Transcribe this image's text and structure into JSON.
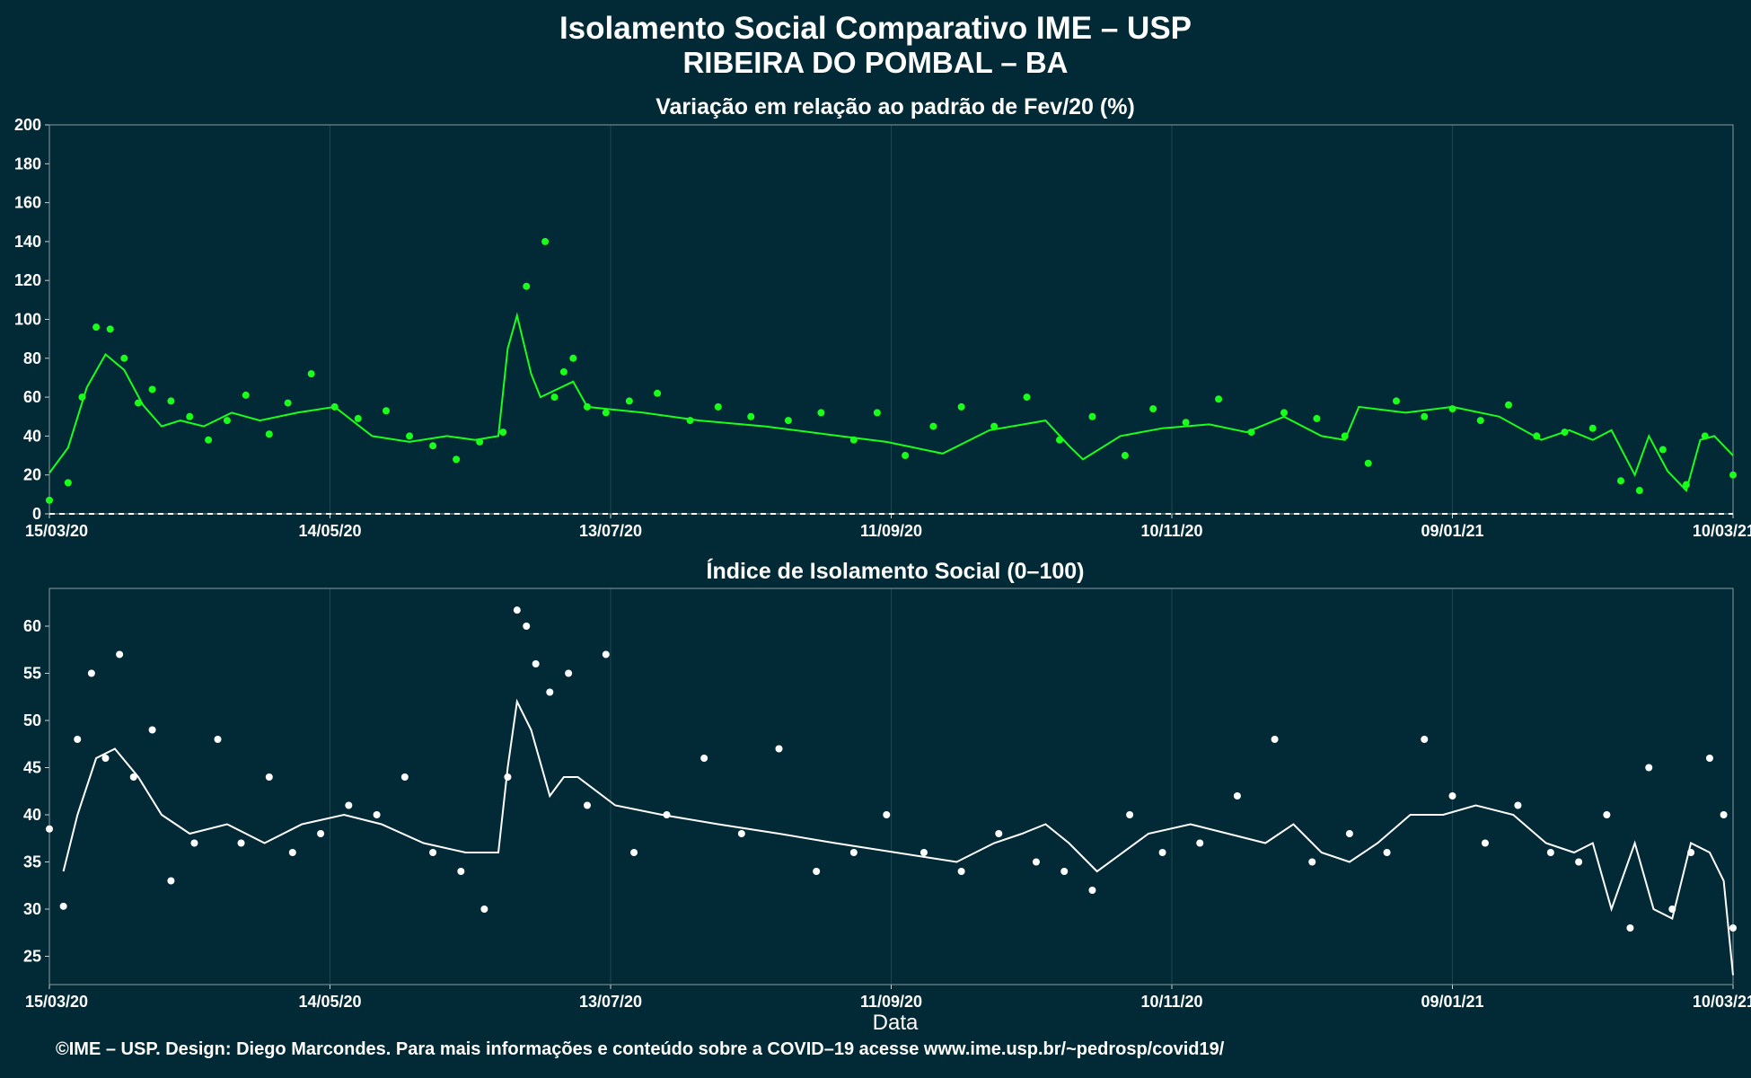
{
  "title": "Isolamento Social Comparativo IME – USP",
  "subtitle": "RIBEIRA DO POMBAL – BA",
  "footer": "©IME – USP. Design: Diego Marcondes. Para mais informações e conteúdo sobre a COVID–19 acesse www.ime.usp.br/~pedrosp/covid19/",
  "colors": {
    "background": "#022a36",
    "top_series": "#1aff1a",
    "bottom_series": "#ffffff"
  },
  "chart_data": [
    {
      "type": "scatter",
      "title": "Variação em relação ao padrão de Fev/20 (%)",
      "xlabel": "",
      "ylabel": "",
      "ylim": [
        0,
        200
      ],
      "xlim": [
        "2020-03-15",
        "2021-03-10"
      ],
      "yticks": [
        0,
        20,
        40,
        60,
        80,
        100,
        120,
        140,
        160,
        180,
        200
      ],
      "xticks": [
        "15/03/20",
        "14/05/20",
        "13/07/20",
        "11/09/20",
        "10/11/20",
        "09/01/21",
        "10/03/21"
      ],
      "reference_line": 0,
      "series": [
        {
          "kind": "points",
          "color": "#1aff1a",
          "x": [
            "2020-03-15",
            "2020-03-19",
            "2020-03-22",
            "2020-03-25",
            "2020-03-28",
            "2020-03-31",
            "2020-04-03",
            "2020-04-06",
            "2020-04-10",
            "2020-04-14",
            "2020-04-18",
            "2020-04-22",
            "2020-04-26",
            "2020-05-01",
            "2020-05-05",
            "2020-05-10",
            "2020-05-15",
            "2020-05-20",
            "2020-05-26",
            "2020-05-31",
            "2020-06-05",
            "2020-06-10",
            "2020-06-15",
            "2020-06-20",
            "2020-06-25",
            "2020-06-29",
            "2020-07-01",
            "2020-07-03",
            "2020-07-05",
            "2020-07-08",
            "2020-07-12",
            "2020-07-17",
            "2020-07-23",
            "2020-07-30",
            "2020-08-05",
            "2020-08-12",
            "2020-08-20",
            "2020-08-27",
            "2020-09-03",
            "2020-09-08",
            "2020-09-14",
            "2020-09-20",
            "2020-09-26",
            "2020-10-03",
            "2020-10-10",
            "2020-10-17",
            "2020-10-24",
            "2020-10-31",
            "2020-11-06",
            "2020-11-13",
            "2020-11-20",
            "2020-11-27",
            "2020-12-04",
            "2020-12-11",
            "2020-12-17",
            "2020-12-22",
            "2020-12-28",
            "2021-01-03",
            "2021-01-09",
            "2021-01-15",
            "2021-01-21",
            "2021-01-27",
            "2021-02-02",
            "2021-02-08",
            "2021-02-14",
            "2021-02-18",
            "2021-02-23",
            "2021-02-28",
            "2021-03-04",
            "2021-03-10"
          ],
          "y": [
            7,
            16,
            60,
            96,
            95,
            80,
            57,
            64,
            58,
            50,
            38,
            48,
            61,
            41,
            57,
            72,
            55,
            49,
            53,
            40,
            35,
            28,
            37,
            42,
            117,
            140,
            60,
            73,
            80,
            55,
            52,
            58,
            62,
            48,
            55,
            50,
            48,
            52,
            38,
            52,
            30,
            45,
            55,
            45,
            60,
            38,
            50,
            30,
            54,
            47,
            59,
            42,
            52,
            49,
            40,
            26,
            58,
            50,
            54,
            48,
            56,
            40,
            42,
            44,
            17,
            12,
            33,
            15,
            40,
            20
          ]
        },
        {
          "kind": "line",
          "color": "#1aff1a",
          "x": [
            "2020-03-15",
            "2020-03-19",
            "2020-03-23",
            "2020-03-27",
            "2020-03-31",
            "2020-04-04",
            "2020-04-08",
            "2020-04-12",
            "2020-04-17",
            "2020-04-23",
            "2020-04-29",
            "2020-05-07",
            "2020-05-15",
            "2020-05-23",
            "2020-05-31",
            "2020-06-08",
            "2020-06-14",
            "2020-06-19",
            "2020-06-21",
            "2020-06-23",
            "2020-06-26",
            "2020-06-28",
            "2020-07-05",
            "2020-07-08",
            "2020-07-12",
            "2020-07-20",
            "2020-08-01",
            "2020-08-15",
            "2020-08-31",
            "2020-09-10",
            "2020-09-22",
            "2020-10-02",
            "2020-10-14",
            "2020-10-19",
            "2020-10-22",
            "2020-10-30",
            "2020-11-08",
            "2020-11-18",
            "2020-11-26",
            "2020-12-04",
            "2020-12-12",
            "2020-12-17",
            "2020-12-20",
            "2020-12-30",
            "2021-01-09",
            "2021-01-19",
            "2021-01-28",
            "2021-02-03",
            "2021-02-08",
            "2021-02-12",
            "2021-02-17",
            "2021-02-20",
            "2021-02-24",
            "2021-02-28",
            "2021-03-03",
            "2021-03-06",
            "2021-03-10"
          ],
          "y": [
            21,
            34,
            65,
            82,
            74,
            56,
            45,
            48,
            45,
            52,
            48,
            52,
            55,
            40,
            37,
            40,
            38,
            40,
            85,
            102,
            72,
            60,
            68,
            55,
            54,
            52,
            48,
            45,
            40,
            37,
            31,
            43,
            48,
            35,
            28,
            40,
            44,
            46,
            42,
            50,
            40,
            38,
            55,
            52,
            55,
            50,
            38,
            43,
            38,
            43,
            20,
            40,
            22,
            12,
            38,
            40,
            30
          ]
        }
      ]
    },
    {
      "type": "scatter",
      "title": "Índice de Isolamento Social (0–100)",
      "xlabel": "Data",
      "ylabel": "",
      "ylim": [
        22,
        64
      ],
      "xlim": [
        "2020-03-15",
        "2021-03-10"
      ],
      "yticks": [
        25,
        30,
        35,
        40,
        45,
        50,
        55,
        60
      ],
      "xticks": [
        "15/03/20",
        "14/05/20",
        "13/07/20",
        "11/09/20",
        "10/11/20",
        "09/01/21",
        "10/03/21"
      ],
      "series": [
        {
          "kind": "points",
          "color": "#ffffff",
          "x": [
            "2020-03-15",
            "2020-03-18",
            "2020-03-21",
            "2020-03-24",
            "2020-03-27",
            "2020-03-30",
            "2020-04-02",
            "2020-04-06",
            "2020-04-10",
            "2020-04-15",
            "2020-04-20",
            "2020-04-25",
            "2020-05-01",
            "2020-05-06",
            "2020-05-12",
            "2020-05-18",
            "2020-05-24",
            "2020-05-30",
            "2020-06-05",
            "2020-06-11",
            "2020-06-16",
            "2020-06-21",
            "2020-06-23",
            "2020-06-25",
            "2020-06-27",
            "2020-06-30",
            "2020-07-04",
            "2020-07-08",
            "2020-07-12",
            "2020-07-18",
            "2020-07-25",
            "2020-08-02",
            "2020-08-10",
            "2020-08-18",
            "2020-08-26",
            "2020-09-03",
            "2020-09-10",
            "2020-09-18",
            "2020-09-26",
            "2020-10-04",
            "2020-10-12",
            "2020-10-18",
            "2020-10-24",
            "2020-11-01",
            "2020-11-08",
            "2020-11-16",
            "2020-11-24",
            "2020-12-02",
            "2020-12-10",
            "2020-12-18",
            "2020-12-26",
            "2021-01-03",
            "2021-01-09",
            "2021-01-16",
            "2021-01-23",
            "2021-01-30",
            "2021-02-05",
            "2021-02-11",
            "2021-02-16",
            "2021-02-20",
            "2021-02-25",
            "2021-03-01",
            "2021-03-05",
            "2021-03-08",
            "2021-03-10"
          ],
          "y": [
            38.5,
            30.3,
            48,
            55,
            46,
            57,
            44,
            49,
            33,
            37,
            48,
            37,
            44,
            36,
            38,
            41,
            40,
            44,
            36,
            34,
            30,
            44,
            61.7,
            60,
            56,
            53,
            55,
            41,
            57,
            36,
            40,
            46,
            38,
            47,
            34,
            36,
            40,
            36,
            34,
            38,
            35,
            34,
            32,
            40,
            36,
            37,
            42,
            48,
            35,
            38,
            36,
            48,
            42,
            37,
            41,
            36,
            35,
            40,
            28,
            45,
            30,
            36,
            46,
            40,
            28
          ]
        },
        {
          "kind": "line",
          "color": "#ffffff",
          "x": [
            "2020-03-18",
            "2020-03-21",
            "2020-03-25",
            "2020-03-29",
            "2020-04-03",
            "2020-04-08",
            "2020-04-14",
            "2020-04-22",
            "2020-04-30",
            "2020-05-08",
            "2020-05-17",
            "2020-05-25",
            "2020-06-03",
            "2020-06-12",
            "2020-06-19",
            "2020-06-21",
            "2020-06-23",
            "2020-06-26",
            "2020-06-30",
            "2020-07-03",
            "2020-07-06",
            "2020-07-14",
            "2020-07-24",
            "2020-08-05",
            "2020-08-18",
            "2020-08-30",
            "2020-09-12",
            "2020-09-25",
            "2020-10-03",
            "2020-10-09",
            "2020-10-14",
            "2020-10-19",
            "2020-10-25",
            "2020-11-05",
            "2020-11-14",
            "2020-11-22",
            "2020-11-30",
            "2020-12-06",
            "2020-12-12",
            "2020-12-18",
            "2020-12-24",
            "2020-12-31",
            "2021-01-07",
            "2021-01-14",
            "2021-01-22",
            "2021-01-29",
            "2021-02-04",
            "2021-02-08",
            "2021-02-12",
            "2021-02-17",
            "2021-02-21",
            "2021-02-25",
            "2021-03-01",
            "2021-03-05",
            "2021-03-08",
            "2021-03-10"
          ],
          "y": [
            34,
            40,
            46,
            47,
            44,
            40,
            38,
            39,
            37,
            39,
            40,
            39,
            37,
            36,
            36,
            45,
            52,
            49,
            42,
            44,
            44,
            41,
            40,
            39,
            38,
            37,
            36,
            35,
            37,
            38,
            39,
            37,
            34,
            38,
            39,
            38,
            37,
            39,
            36,
            35,
            37,
            40,
            40,
            41,
            40,
            37,
            36,
            37,
            30,
            37,
            30,
            29,
            37,
            36,
            33,
            23
          ]
        }
      ]
    }
  ]
}
